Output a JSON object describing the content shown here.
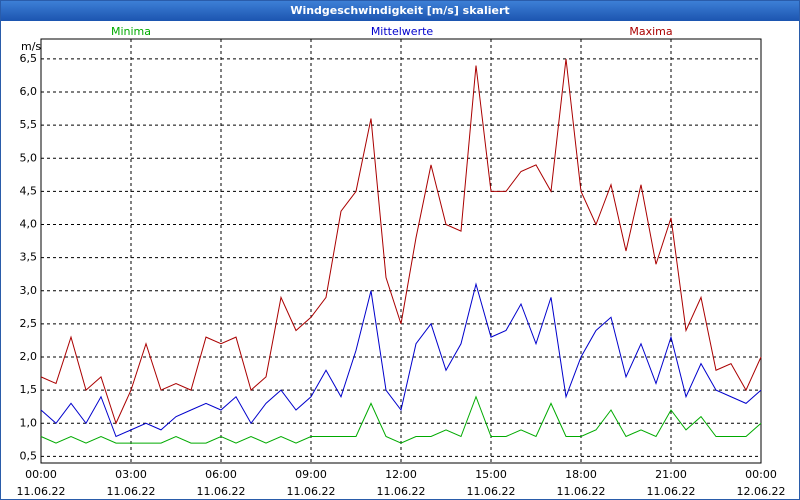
{
  "chart_data": {
    "type": "line",
    "title": "Windgeschwindigkeit [m/s] skaliert",
    "ylabel": "m/s",
    "x": [
      0,
      0.5,
      1,
      1.5,
      2,
      2.5,
      3,
      3.5,
      4,
      4.5,
      5,
      5.5,
      6,
      6.5,
      7,
      7.5,
      8,
      8.5,
      9,
      9.5,
      10,
      10.5,
      11,
      11.5,
      12,
      12.5,
      13,
      13.5,
      14,
      14.5,
      15,
      15.5,
      16,
      16.5,
      17,
      17.5,
      18,
      18.5,
      19,
      19.5,
      20,
      20.5,
      21,
      21.5,
      22,
      22.5,
      23,
      23.5,
      24
    ],
    "series": [
      {
        "name": "Minima",
        "color": "#00aa00",
        "values": [
          0.8,
          0.7,
          0.8,
          0.7,
          0.8,
          0.7,
          0.7,
          0.7,
          0.7,
          0.8,
          0.7,
          0.7,
          0.8,
          0.7,
          0.8,
          0.7,
          0.8,
          0.7,
          0.8,
          0.8,
          0.8,
          0.8,
          1.3,
          0.8,
          0.7,
          0.8,
          0.8,
          0.9,
          0.8,
          1.4,
          0.8,
          0.8,
          0.9,
          0.8,
          1.3,
          0.8,
          0.8,
          0.9,
          1.2,
          0.8,
          0.9,
          0.8,
          1.2,
          0.9,
          1.1,
          0.8,
          0.8,
          0.8,
          1.0
        ]
      },
      {
        "name": "Mittelwerte",
        "color": "#0000cc",
        "values": [
          1.2,
          1.0,
          1.3,
          1.0,
          1.4,
          0.8,
          0.9,
          1.0,
          0.9,
          1.1,
          1.2,
          1.3,
          1.2,
          1.4,
          1.0,
          1.3,
          1.5,
          1.2,
          1.4,
          1.8,
          1.4,
          2.1,
          3.0,
          1.5,
          1.2,
          2.2,
          2.5,
          1.8,
          2.2,
          3.1,
          2.3,
          2.4,
          2.8,
          2.2,
          2.9,
          1.4,
          2.0,
          2.4,
          2.6,
          1.7,
          2.2,
          1.6,
          2.3,
          1.4,
          1.9,
          1.5,
          1.4,
          1.3,
          1.5
        ]
      },
      {
        "name": "Maxima",
        "color": "#aa0000",
        "values": [
          1.7,
          1.6,
          2.3,
          1.5,
          1.7,
          1.0,
          1.5,
          2.2,
          1.5,
          1.6,
          1.5,
          2.3,
          2.2,
          2.3,
          1.5,
          1.7,
          2.9,
          2.4,
          2.6,
          2.9,
          4.2,
          4.5,
          5.6,
          3.2,
          2.5,
          3.8,
          4.9,
          4.0,
          3.9,
          6.4,
          4.5,
          4.5,
          4.8,
          4.9,
          4.5,
          6.5,
          4.5,
          4.0,
          4.6,
          3.6,
          4.6,
          3.4,
          4.1,
          2.4,
          2.9,
          1.8,
          1.9,
          1.5,
          2.0
        ]
      }
    ],
    "xlim": [
      0,
      24
    ],
    "xticks": [
      {
        "value": 0,
        "label": "00:00"
      },
      {
        "value": 3,
        "label": "03:00"
      },
      {
        "value": 6,
        "label": "06:00"
      },
      {
        "value": 9,
        "label": "09:00"
      },
      {
        "value": 12,
        "label": "12:00"
      },
      {
        "value": 15,
        "label": "15:00"
      },
      {
        "value": 18,
        "label": "18:00"
      },
      {
        "value": 21,
        "label": "21:00"
      },
      {
        "value": 24,
        "label": "00:00"
      }
    ],
    "xtick_dates": [
      "11.06.22",
      "11.06.22",
      "11.06.22",
      "11.06.22",
      "11.06.22",
      "11.06.22",
      "11.06.22",
      "11.06.22",
      "12.06.22"
    ],
    "ylim": [
      0.4,
      6.8
    ],
    "yticks": [
      {
        "value": 0.5,
        "label": "0,5"
      },
      {
        "value": 1,
        "label": "1,0"
      },
      {
        "value": 1.5,
        "label": "1,5"
      },
      {
        "value": 2,
        "label": "2,0"
      },
      {
        "value": 2.5,
        "label": "2,5"
      },
      {
        "value": 3,
        "label": "3,0"
      },
      {
        "value": 3.5,
        "label": "3,5"
      },
      {
        "value": 4,
        "label": "4,0"
      },
      {
        "value": 4.5,
        "label": "4,5"
      },
      {
        "value": 5,
        "label": "5,0"
      },
      {
        "value": 5.5,
        "label": "5,5"
      },
      {
        "value": 6,
        "label": "6,0"
      },
      {
        "value": 6.5,
        "label": "6,5"
      }
    ],
    "grid": true
  }
}
